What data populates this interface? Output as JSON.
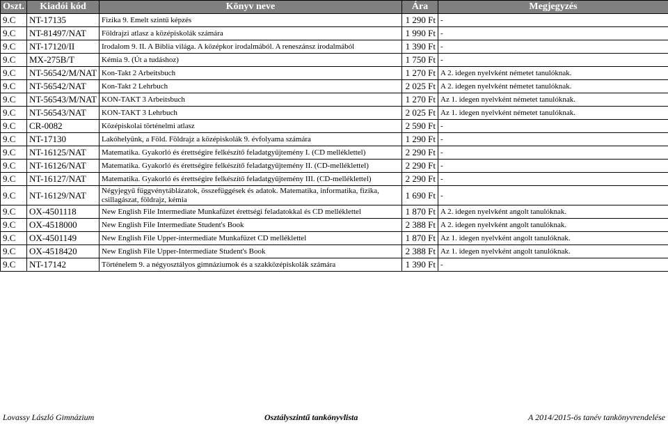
{
  "header": {
    "col1": "Oszt.",
    "col2": "Kiadói kód",
    "col3": "Könyv neve",
    "col4": "Ára",
    "col5": "Megjegyzés"
  },
  "rows": [
    {
      "oszt": "9.C",
      "kod": "NT-17135",
      "nev": "Fizika 9. Emelt szintű képzés",
      "ar": "1 290 Ft",
      "meg": "-",
      "wrap": false
    },
    {
      "oszt": "9.C",
      "kod": "NT-81497/NAT",
      "nev": "Földrajzi atlasz a középiskolák számára",
      "ar": "1 990 Ft",
      "meg": "-",
      "wrap": false
    },
    {
      "oszt": "9.C",
      "kod": "NT-17120/II",
      "nev": "Irodalom 9. II. A Biblia világa. A középkor irodalmából. A reneszánsz irodalmából",
      "ar": "1 390 Ft",
      "meg": "-",
      "wrap": false
    },
    {
      "oszt": "9.C",
      "kod": "MX-275B/T",
      "nev": "Kémia 9. (Út a tudáshoz)",
      "ar": "1 750 Ft",
      "meg": "-",
      "wrap": false
    },
    {
      "oszt": "9.C",
      "kod": "NT-56542/M/NAT",
      "nev": "Kon-Takt 2 Arbeitsbuch",
      "ar": "1 270 Ft",
      "meg": "A 2. idegen nyelvként németet tanulóknak.",
      "wrap": false
    },
    {
      "oszt": "9.C",
      "kod": "NT-56542/NAT",
      "nev": "Kon-Takt 2 Lehrbuch",
      "ar": "2 025 Ft",
      "meg": "A 2. idegen nyelvként németet tanulóknak.",
      "wrap": false
    },
    {
      "oszt": "9.C",
      "kod": "NT-56543/M/NAT",
      "nev": "KON-TAKT 3 Arbeitsbuch",
      "ar": "1 270 Ft",
      "meg": "Az 1. idegen nyelvként németet tanulóknak.",
      "wrap": false
    },
    {
      "oszt": "9.C",
      "kod": "NT-56543/NAT",
      "nev": "KON-TAKT 3 Lehrbuch",
      "ar": "2 025 Ft",
      "meg": "Az 1. idegen nyelvként németet tanulóknak.",
      "wrap": false
    },
    {
      "oszt": "9.C",
      "kod": "CR-0082",
      "nev": "Középiskolai történelmi atlasz",
      "ar": "2 590 Ft",
      "meg": "-",
      "wrap": false
    },
    {
      "oszt": "9.C",
      "kod": "NT-17130",
      "nev": "Lakóhelyünk, a Föld. Földrajz a középiskolák 9. évfolyama számára",
      "ar": "1 290 Ft",
      "meg": "-",
      "wrap": false
    },
    {
      "oszt": "9.C",
      "kod": "NT-16125/NAT",
      "nev": "Matematika. Gyakorló és érettségire felkészítő feladatgyűjtemény I. (CD melléklettel)",
      "ar": "2 290 Ft",
      "meg": "-",
      "wrap": true
    },
    {
      "oszt": "9.C",
      "kod": "NT-16126/NAT",
      "nev": "Matematika. Gyakorló és érettségire felkészítő feladatgyűjtemény II. (CD-melléklettel)",
      "ar": "2 290 Ft",
      "meg": "-",
      "wrap": true
    },
    {
      "oszt": "9.C",
      "kod": "NT-16127/NAT",
      "nev": "Matematika. Gyakorló és érettségire felkészítő feladatgyűjtemény III. (CD-melléklettel)",
      "ar": "2 290 Ft",
      "meg": "-",
      "wrap": true
    },
    {
      "oszt": "9.C",
      "kod": "NT-16129/NAT",
      "nev": "Négyjegyű függvénytáblázatok, összefüggések és adatok. Matematika, informatika, fizika, csillagászat, földrajz, kémia",
      "ar": "1 690 Ft",
      "meg": "-",
      "wrap": true
    },
    {
      "oszt": "9.C",
      "kod": "OX-4501118",
      "nev": "New English File Intermediate Munkafüzet érettségi feladatokkal és CD melléklettel",
      "ar": "1 870 Ft",
      "meg": "A 2. idegen nyelvként angolt tanulóknak.",
      "wrap": false
    },
    {
      "oszt": "9.C",
      "kod": "OX-4518000",
      "nev": "New English File Intermediate Student's Book",
      "ar": "2 388 Ft",
      "meg": "A 2. idegen nyelvként angolt tanulóknak.",
      "wrap": false
    },
    {
      "oszt": "9.C",
      "kod": "OX-4501149",
      "nev": "New English File Upper-intermediate Munkafüzet CD melléklettel",
      "ar": "1 870 Ft",
      "meg": "Az 1. idegen nyelvként angolt tanulóknak.",
      "wrap": false
    },
    {
      "oszt": "9.C",
      "kod": "OX-4518420",
      "nev": "New English File Upper-Intermediate Student's Book",
      "ar": "2 388 Ft",
      "meg": "Az 1. idegen nyelvként angolt tanulóknak.",
      "wrap": false
    },
    {
      "oszt": "9.C",
      "kod": "NT-17142",
      "nev": "Történelem 9. a négyosztályos gimnáziumok és a szakközépiskolák számára",
      "ar": "1 390 Ft",
      "meg": "-",
      "wrap": false
    }
  ],
  "footer": {
    "left": "Lovassy László Gimnázium",
    "center": "Osztályszintű tankönyvlista",
    "right": "A 2014/2015-ös tanév tankönyvrendelése"
  }
}
